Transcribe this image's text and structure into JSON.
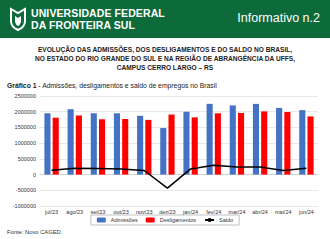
{
  "header": {
    "institution_lines": [
      "UNIVERSIDADE FEDERAL",
      "DA FRONTEIRA SUL"
    ],
    "issue": "Informativo n.2"
  },
  "title_lines": [
    "EVOLUÇÃO DAS ADMISSÕES, DOS DESLIGAMENTOS E DO SALDO NO BRASIL,",
    "NO ESTADO DO RIO GRANDE DO SUL E NA REGIÃO DE ABRANGÊNCIA DA UFFS,",
    "CAMPUS CERRO LARGO – RS"
  ],
  "figure": {
    "label": "Gráfico 1",
    "caption": "- Admissões, desligamentos e saldo de empregos no Brasil"
  },
  "source": "Fonte: Novo CAGED.",
  "chart_data": {
    "type": "bar",
    "categories": [
      "jul/23",
      "ago/23",
      "set/23",
      "out/23",
      "nov/23",
      "dez/23",
      "jan/24",
      "fev/24",
      "mar/24",
      "abr/24",
      "mai/24",
      "jun/24"
    ],
    "series": [
      {
        "name": "Admissões",
        "type": "bar",
        "color": "#4472c4",
        "values": [
          1950000,
          2080000,
          1950000,
          1950000,
          1870000,
          1480000,
          2000000,
          2250000,
          2200000,
          2250000,
          2120000,
          2050000
        ]
      },
      {
        "name": "Desligamentos",
        "type": "bar",
        "color": "#ff0000",
        "values": [
          1810000,
          1880000,
          1760000,
          1770000,
          1740000,
          1910000,
          1820000,
          1950000,
          1960000,
          2010000,
          1990000,
          1850000
        ]
      },
      {
        "name": "Saldo",
        "type": "line",
        "color": "#000000",
        "values": [
          140000,
          200000,
          190000,
          180000,
          130000,
          -430000,
          180000,
          300000,
          240000,
          240000,
          130000,
          200000
        ]
      }
    ],
    "ylim": [
      -1000000,
      2500000
    ],
    "yticks": [
      -1000000,
      -500000,
      0,
      500000,
      1000000,
      1500000,
      2000000,
      2500000
    ],
    "grid": true,
    "legend": "bottom"
  }
}
